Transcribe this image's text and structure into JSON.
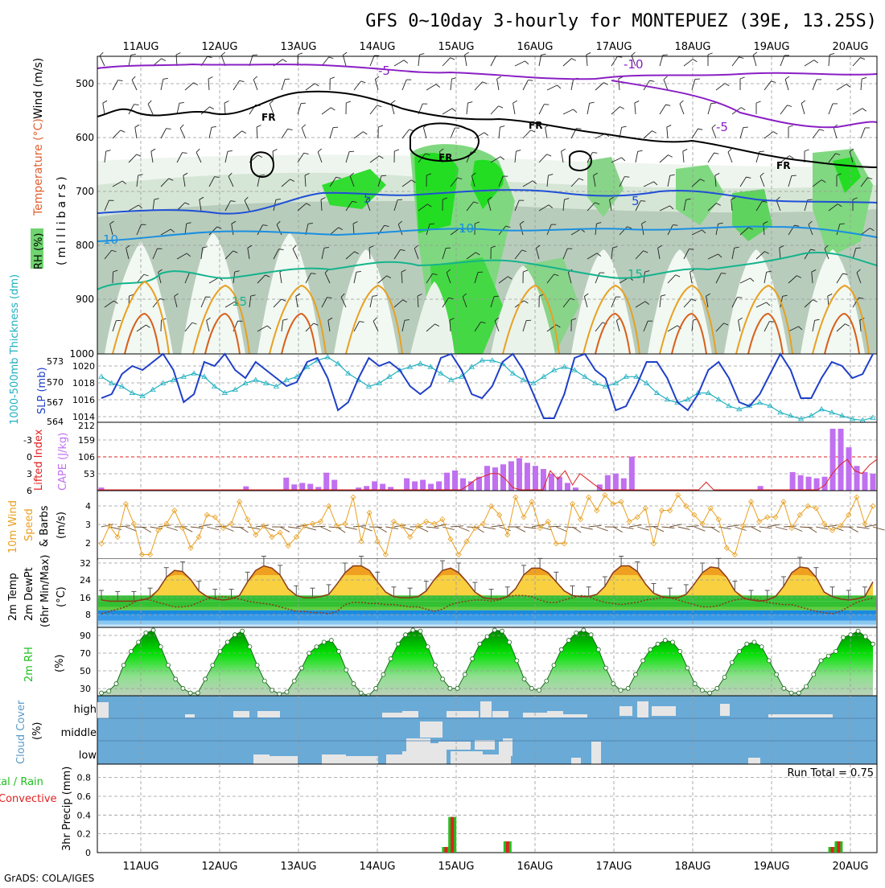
{
  "title": "GFS 0~10day 3-hourly for MONTEPUEZ (39E, 13.25S)",
  "footer": "GrADS: COLA/IGES",
  "dates": [
    "11AUG",
    "12AUG",
    "13AUG",
    "14AUG",
    "15AUG",
    "16AUG",
    "17AUG",
    "18AUG",
    "19AUG",
    "20AUG"
  ],
  "colors": {
    "purple_isotherm": "#8a1fc4",
    "freezing": "#000000",
    "blue_isotherm": "#1f4fd6",
    "lightblue_isotherm": "#1a8fe0",
    "teal_isotherm": "#14b48c",
    "orange_isotherm": "#e8a020",
    "rh_green": "#00e000",
    "slp": "#1f3fc8",
    "thickness": "#20b0c0",
    "cape": "#c070f0",
    "lifted": "#e02020",
    "wind10": "#e8a020",
    "cloud_bg": "#6aaad6",
    "precip_total": "#20c020",
    "precip_conv": "#e02020"
  },
  "panels": {
    "upper": {
      "ylabel_rh": "RH (%)",
      "ylabel_temp": "Temperature (°C)",
      "ylabel_wind": "Wind (m/s)",
      "ylabel_mb": "(millibars)",
      "yticks": [
        "500",
        "600",
        "700",
        "800",
        "900",
        "1000"
      ],
      "labels": {
        "m5a": "-5",
        "m10": "-10",
        "m5b": "-5",
        "fr1": "FR",
        "fr2": "FR",
        "fr3": "FR",
        "fr4": "FR",
        "p5a": "5",
        "p5b": "5",
        "p10a": "10",
        "p10b": "10",
        "p15a": "15",
        "p15b": "15"
      }
    },
    "slp": {
      "ylabel_thk": "1000-500mb Thickness (dm)",
      "ylabel_slp": "SLP (mb)",
      "left_ticks": [
        "573",
        "570",
        "567",
        "564"
      ],
      "right_ticks": [
        "1020",
        "1018",
        "1016",
        "1014"
      ]
    },
    "cape": {
      "ylabel_li": "Lifted Index",
      "ylabel_cape": "CAPE (J/kg)",
      "left_ticks": [
        "-3",
        "0",
        "3",
        "6"
      ],
      "right_ticks": [
        "212",
        "159",
        "106",
        "53"
      ]
    },
    "wind": {
      "ylabel_a": "10m Wind",
      "ylabel_b": "Speed",
      "ylabel_c": "& Barbs",
      "ylabel_d": "(m/s)",
      "ticks": [
        "4",
        "3",
        "2"
      ]
    },
    "temp": {
      "ylabel_a": "2m Temp",
      "ylabel_b": "2m DewPt",
      "ylabel_c": "(6hr Min/Max)",
      "ylabel_d": "(°C)",
      "ticks": [
        "32",
        "24",
        "16",
        "8"
      ]
    },
    "rh": {
      "ylabel_a": "2m RH",
      "ylabel_b": "(%)",
      "ticks": [
        "90",
        "70",
        "50",
        "30"
      ]
    },
    "cloud": {
      "ylabel_a": "Cloud Cover",
      "ylabel_b": "(%)",
      "levels": [
        "high",
        "middle",
        "low"
      ]
    },
    "precip": {
      "ylabel_a": "tal / Rain",
      "ylabel_b": "Convective",
      "ylabel_c": "3hr Precip (mm)",
      "ticks": [
        "0.8",
        "0.6",
        "0.4",
        "0.2",
        "0"
      ],
      "run_total": "Run Total = 0.75"
    }
  },
  "chart_data": [
    {
      "type": "line",
      "name": "sea-level-pressure",
      "units": "mb",
      "ylim": [
        1012.5,
        1021
      ],
      "values": [
        1015.5,
        1016,
        1018.5,
        1019.5,
        1019,
        1020,
        1021,
        1019,
        1015,
        1016,
        1020,
        1019.5,
        1021,
        1019,
        1018,
        1020,
        1019,
        1018,
        1017,
        1017.5,
        1020,
        1020.5,
        1018,
        1014,
        1015,
        1018,
        1020.5,
        1019.5,
        1020,
        1019,
        1017,
        1016,
        1017,
        1020.5,
        1021,
        1019,
        1016,
        1015.5,
        1017,
        1020,
        1021,
        1019,
        1016,
        1013,
        1013,
        1016,
        1020.5,
        1021,
        1019,
        1018,
        1014,
        1014.5,
        1017,
        1020,
        1020,
        1018,
        1015,
        1014,
        1016,
        1019,
        1020,
        1018,
        1015,
        1014.5,
        1016,
        1018.5,
        1021,
        1019,
        1015.5,
        1015.5,
        1018,
        1020,
        1019.5,
        1018,
        1018.5,
        1021
      ]
    },
    {
      "type": "line",
      "name": "thickness-1000-500mb",
      "units": "dm",
      "ylim": [
        563.5,
        574
      ],
      "values": [
        570.5,
        569.5,
        569,
        568,
        567.5,
        568.5,
        569.5,
        570,
        570.5,
        571,
        570.5,
        569,
        568,
        568.5,
        569.5,
        570,
        569.5,
        569,
        570,
        570.5,
        572,
        573,
        573.5,
        572.5,
        571,
        570,
        569,
        569.5,
        570.5,
        571.5,
        572,
        572.5,
        572,
        571,
        570,
        570.5,
        572,
        573,
        573,
        572.5,
        571,
        570,
        569.5,
        570.5,
        571.5,
        572,
        571.5,
        570.5,
        569.5,
        569,
        569.5,
        570.5,
        570.5,
        569.5,
        568,
        567,
        566.5,
        567,
        568,
        568,
        567,
        566,
        565.5,
        566,
        566.5,
        566,
        565,
        564.5,
        564,
        564.5,
        565.5,
        565,
        564.5,
        564,
        563.8,
        564.2
      ]
    },
    {
      "type": "bar",
      "name": "cape",
      "units": "J/kg",
      "ylim": [
        0,
        212
      ],
      "values": [
        10,
        0,
        0,
        0,
        0,
        0,
        0,
        0,
        0,
        0,
        0,
        0,
        0,
        0,
        0,
        0,
        0,
        0,
        14,
        0,
        0,
        0,
        0,
        42,
        20,
        25,
        22,
        12,
        58,
        35,
        0,
        0,
        10,
        15,
        30,
        22,
        12,
        0,
        40,
        30,
        35,
        22,
        30,
        58,
        65,
        40,
        30,
        45,
        80,
        75,
        85,
        95,
        105,
        90,
        80,
        70,
        55,
        45,
        25,
        10,
        0,
        0,
        20,
        50,
        55,
        40,
        110,
        0,
        0,
        0,
        0,
        0,
        0,
        0,
        0,
        0,
        0,
        0,
        0,
        0,
        0,
        0,
        15,
        0,
        0,
        0,
        60,
        50,
        45,
        40,
        45,
        200,
        200,
        140,
        80,
        60,
        55
      ]
    },
    {
      "type": "line",
      "name": "lifted-index",
      "ylim": [
        6,
        -6
      ],
      "values": [
        6,
        6,
        6,
        6,
        6,
        6,
        6,
        6,
        6,
        6,
        6,
        6,
        6,
        6,
        6,
        6,
        6,
        6,
        6,
        6,
        6,
        6,
        6,
        6,
        6,
        6,
        6,
        6,
        6,
        6,
        6,
        6,
        6,
        6,
        6,
        6,
        6,
        6,
        6,
        6,
        6,
        6,
        6,
        6,
        6,
        6,
        6,
        6,
        6,
        6,
        5,
        4,
        3.5,
        3,
        3,
        4,
        5.5,
        6,
        6,
        6,
        6,
        2.5,
        4,
        2.5,
        5,
        3,
        4,
        5,
        6,
        6,
        6,
        6,
        6,
        6,
        6,
        6,
        6,
        6,
        6,
        6,
        6,
        6,
        4.5,
        6,
        6,
        6,
        6,
        6,
        6,
        6,
        6,
        6,
        6,
        6,
        6,
        6,
        6,
        6,
        5,
        3,
        1.5,
        0.5,
        2.5,
        3,
        1.5,
        0.5
      ]
    },
    {
      "type": "line",
      "name": "10m-wind-speed",
      "units": "m/s",
      "ylim": [
        1.5,
        4.6
      ],
      "values": [
        2.2,
        3,
        2.5,
        4,
        3.1,
        1.7,
        1.7,
        2.8,
        3.1,
        3.7,
        2.9,
        2,
        2.5,
        3.5,
        3.4,
        2.9,
        3.1,
        4.1,
        3.3,
        2.6,
        3,
        2.5,
        2.7,
        2.1,
        2.5,
        3,
        3.1,
        3.2,
        3.9,
        3,
        3.1,
        4.3,
        2.3,
        3.6,
        2.3,
        1.7,
        3.2,
        3,
        2.5,
        3,
        3.2,
        3.1,
        3.3,
        2.4,
        1.7,
        2.3,
        2.9,
        3.1,
        3.9,
        3.5,
        2.6,
        4.3,
        3.4,
        4.1,
        2.9,
        3.2,
        2.2,
        2.2,
        4,
        3.3,
        4.3,
        3.7,
        4.4,
        4,
        4.1,
        3.2,
        3.4,
        3.8,
        2.2,
        3.7,
        3.7,
        4.4,
        3.9,
        3.5,
        3.1,
        3.8,
        3.3,
        2,
        1.7,
        3,
        4.1,
        3.2,
        3.4,
        3.4,
        4.1,
        2.9,
        3.5,
        3.9,
        3.8,
        3.1,
        2.8,
        3,
        3.5,
        4.3,
        3.1,
        3.9
      ]
    },
    {
      "type": "area",
      "name": "2m-temperature",
      "units": "°C",
      "ylim": [
        2,
        32
      ],
      "values": [
        14,
        13.5,
        13.5,
        13.5,
        13.5,
        14,
        15,
        18.5,
        24,
        27,
        26.5,
        23,
        18,
        15.5,
        14.5,
        14,
        14.5,
        16,
        22,
        27,
        29,
        28,
        25,
        19,
        16,
        15,
        15,
        15.5,
        16.5,
        21,
        26,
        29,
        29,
        27,
        22,
        17.5,
        15.5,
        15,
        15,
        15.5,
        18,
        23,
        27,
        28,
        26,
        22,
        17.5,
        15,
        14.5,
        14.5,
        15.5,
        19,
        25,
        28,
        28,
        26,
        22,
        18,
        16,
        15.5,
        15.5,
        16.5,
        20,
        26,
        29,
        29,
        26.5,
        21,
        17,
        15.5,
        15,
        15,
        16.5,
        21,
        26,
        28.5,
        28,
        24,
        18,
        15,
        14,
        13.5,
        14,
        15.5,
        20,
        26,
        28.5,
        28,
        24,
        17.5,
        15.5,
        14.5,
        14,
        14.5,
        15.5,
        22
      ]
    },
    {
      "type": "line",
      "name": "2m-dewpoint",
      "units": "°C",
      "ylim": [
        2,
        32
      ],
      "values": [
        8,
        9,
        10,
        11,
        13,
        14.5,
        14,
        13,
        12,
        11,
        11,
        11.5,
        13,
        14.5,
        15,
        15.5,
        15,
        14.5,
        13.5,
        13,
        12.5,
        12,
        11,
        10,
        9,
        9,
        8.5,
        8.5,
        8,
        9,
        12,
        13,
        13,
        12.5,
        12.5,
        12,
        12,
        11.5,
        11,
        11,
        10,
        9,
        10,
        12,
        13,
        13.5,
        14,
        14,
        13.5,
        14,
        15.5,
        16,
        16,
        15.5,
        14,
        13,
        13,
        14,
        15,
        16,
        15.5,
        14,
        13,
        12.5,
        12,
        12.5,
        13,
        14,
        14.5,
        15,
        15,
        14,
        13,
        12,
        11,
        11,
        11.5,
        13,
        14,
        14.5,
        14.5,
        14,
        13,
        12.5,
        12,
        12,
        11,
        10,
        9,
        8.5,
        8,
        9,
        11,
        13,
        14,
        15
      ]
    },
    {
      "type": "area",
      "name": "2m-relative-humidity",
      "units": "%",
      "ylim": [
        22,
        96
      ],
      "values": [
        25,
        27,
        35,
        55,
        70,
        80,
        90,
        93,
        75,
        55,
        40,
        30,
        25,
        25,
        40,
        55,
        70,
        80,
        88,
        92,
        75,
        55,
        38,
        28,
        24,
        26,
        38,
        52,
        68,
        75,
        80,
        82,
        70,
        50,
        35,
        25,
        22,
        30,
        45,
        62,
        78,
        88,
        93,
        92,
        75,
        55,
        40,
        30,
        30,
        45,
        62,
        78,
        86,
        93,
        92,
        80,
        60,
        40,
        30,
        28,
        38,
        55,
        72,
        82,
        90,
        93,
        88,
        72,
        52,
        35,
        28,
        30,
        45,
        60,
        72,
        78,
        82,
        80,
        70,
        52,
        35,
        28,
        25,
        30,
        42,
        58,
        70,
        78,
        80,
        75,
        60,
        45,
        30,
        25,
        25,
        32,
        45,
        60,
        65,
        70,
        85,
        88,
        92,
        86,
        78
      ]
    },
    {
      "type": "bar",
      "name": "3hr-precip-total",
      "units": "mm",
      "ylim": [
        0,
        0.9
      ],
      "bars": [
        {
          "date_index": 4.82,
          "value": 0.06
        },
        {
          "date_index": 4.9,
          "value": 0.38
        },
        {
          "date_index": 5.6,
          "value": 0.12
        },
        {
          "date_index": 9.72,
          "value": 0.06
        },
        {
          "date_index": 9.8,
          "value": 0.12
        }
      ],
      "run_total": 0.75
    }
  ]
}
